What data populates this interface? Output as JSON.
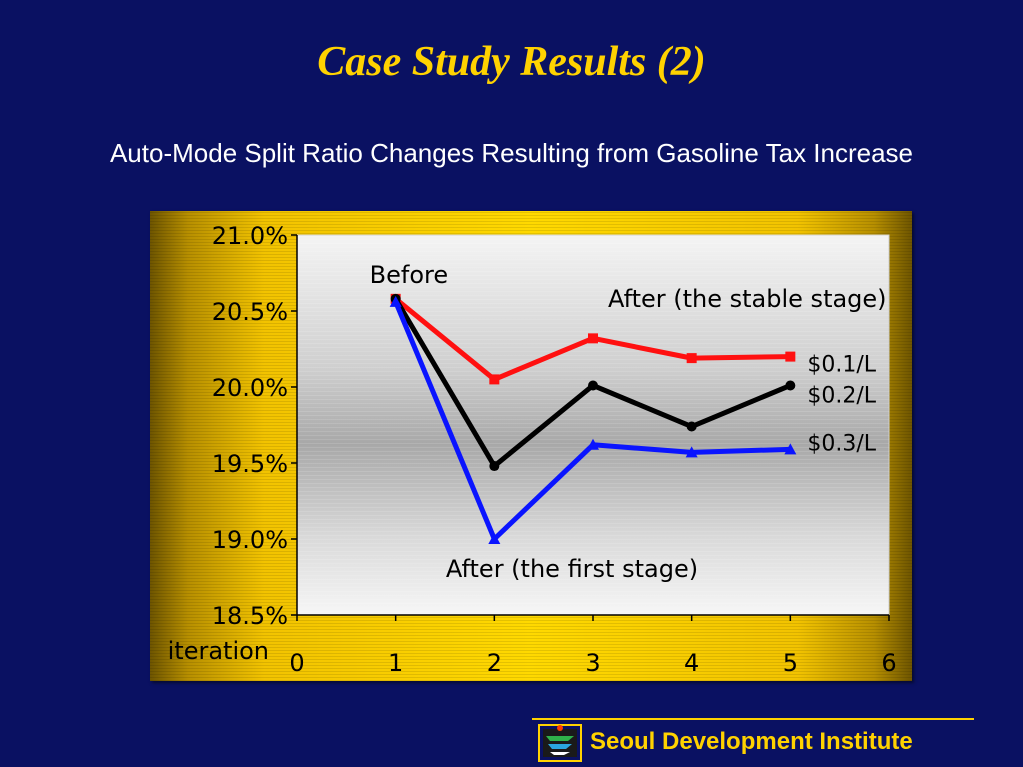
{
  "slide": {
    "title": "Case Study Results (2)",
    "subtitle": "Auto-Mode Split Ratio Changes Resulting from Gasoline Tax Increase",
    "organization": "Seoul Development Institute",
    "logo_icon": "seoul-development-institute-logo-icon"
  },
  "colors": {
    "background": "#0a1162",
    "title": "#ffd200",
    "frame": "#ffd900"
  },
  "chart_data": {
    "type": "line",
    "xlabel": "iteration",
    "ylabel": "",
    "x_ticks": [
      0,
      1,
      2,
      3,
      4,
      5,
      6
    ],
    "xlim": [
      0,
      6
    ],
    "ylim": [
      18.5,
      21.0
    ],
    "y_ticks": [
      "18.5%",
      "19.0%",
      "19.5%",
      "20.0%",
      "20.5%",
      "21.0%"
    ],
    "y_tick_values": [
      18.5,
      19.0,
      19.5,
      20.0,
      20.5,
      21.0
    ],
    "grid": false,
    "series": [
      {
        "name": "$0.1/L",
        "color": "#ff1010",
        "marker": "square",
        "x": [
          1,
          2,
          3,
          4,
          5
        ],
        "values": [
          20.58,
          20.05,
          20.32,
          20.19,
          20.2
        ]
      },
      {
        "name": "$0.2/L",
        "color": "#000000",
        "marker": "circle",
        "x": [
          1,
          2,
          3,
          4,
          5
        ],
        "values": [
          20.58,
          19.48,
          20.01,
          19.74,
          20.01
        ]
      },
      {
        "name": "$0.3/L",
        "color": "#0a14ff",
        "marker": "triangle",
        "x": [
          1,
          2,
          3,
          4,
          5
        ],
        "values": [
          20.56,
          19.0,
          19.62,
          19.57,
          19.59
        ]
      }
    ],
    "annotations": [
      {
        "text": "Before",
        "x": 1,
        "y": 20.58
      },
      {
        "text": "After (the stable stage)",
        "x": 4,
        "y": 20.32
      },
      {
        "text": "After (the first stage)",
        "x": 2,
        "y": 19.0
      }
    ]
  }
}
